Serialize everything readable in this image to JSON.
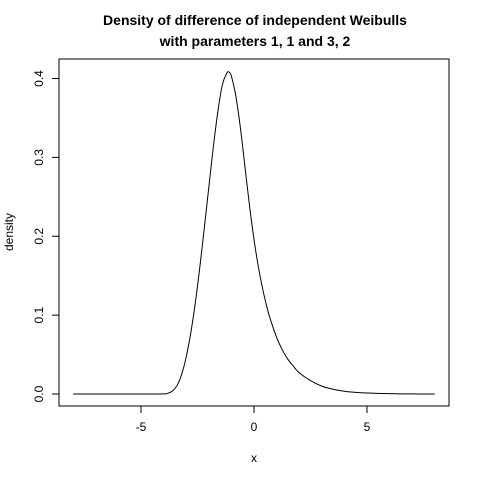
{
  "chart_data": {
    "type": "line",
    "title": [
      "Density of difference of independent Weibulls",
      "with parameters 1, 1 and 3, 2"
    ],
    "xlabel": "x",
    "ylabel": "density",
    "xlim": [
      -8,
      8
    ],
    "ylim": [
      0,
      0.4
    ],
    "xticks": [
      -5,
      0,
      5
    ],
    "xtick_labels": [
      "-5",
      "0",
      "5"
    ],
    "yticks": [
      0,
      0.1,
      0.2,
      0.3,
      0.4
    ],
    "ytick_labels": [
      "0.0",
      "0.1",
      "0.2",
      "0.3",
      "0.4"
    ],
    "grid": false,
    "legend": "none",
    "line_color": "#000000",
    "series": [
      {
        "x": [
          -8,
          -7,
          -6,
          -5,
          -4,
          -3.8,
          -3.6,
          -3.4,
          -3.2,
          -3.0,
          -2.8,
          -2.6,
          -2.4,
          -2.2,
          -2.0,
          -1.8,
          -1.6,
          -1.4,
          -1.2,
          -1.1,
          -1.0,
          -0.8,
          -0.6,
          -0.4,
          -0.2,
          0.0,
          0.2,
          0.4,
          0.6,
          0.8,
          1.0,
          1.25,
          1.5,
          1.75,
          2.0,
          2.5,
          3.0,
          3.5,
          4.0,
          4.5,
          5.0,
          6.0,
          7.0,
          8.0
        ],
        "y": [
          0,
          0,
          0,
          0,
          0.0002,
          0.001,
          0.004,
          0.011,
          0.025,
          0.047,
          0.077,
          0.115,
          0.16,
          0.21,
          0.262,
          0.313,
          0.358,
          0.392,
          0.407,
          0.408,
          0.403,
          0.377,
          0.337,
          0.288,
          0.239,
          0.196,
          0.16,
          0.131,
          0.107,
          0.088,
          0.072,
          0.056,
          0.044,
          0.035,
          0.027,
          0.017,
          0.01,
          0.006,
          0.0035,
          0.002,
          0.0012,
          0.0004,
          0.0001,
          0
        ]
      }
    ]
  }
}
